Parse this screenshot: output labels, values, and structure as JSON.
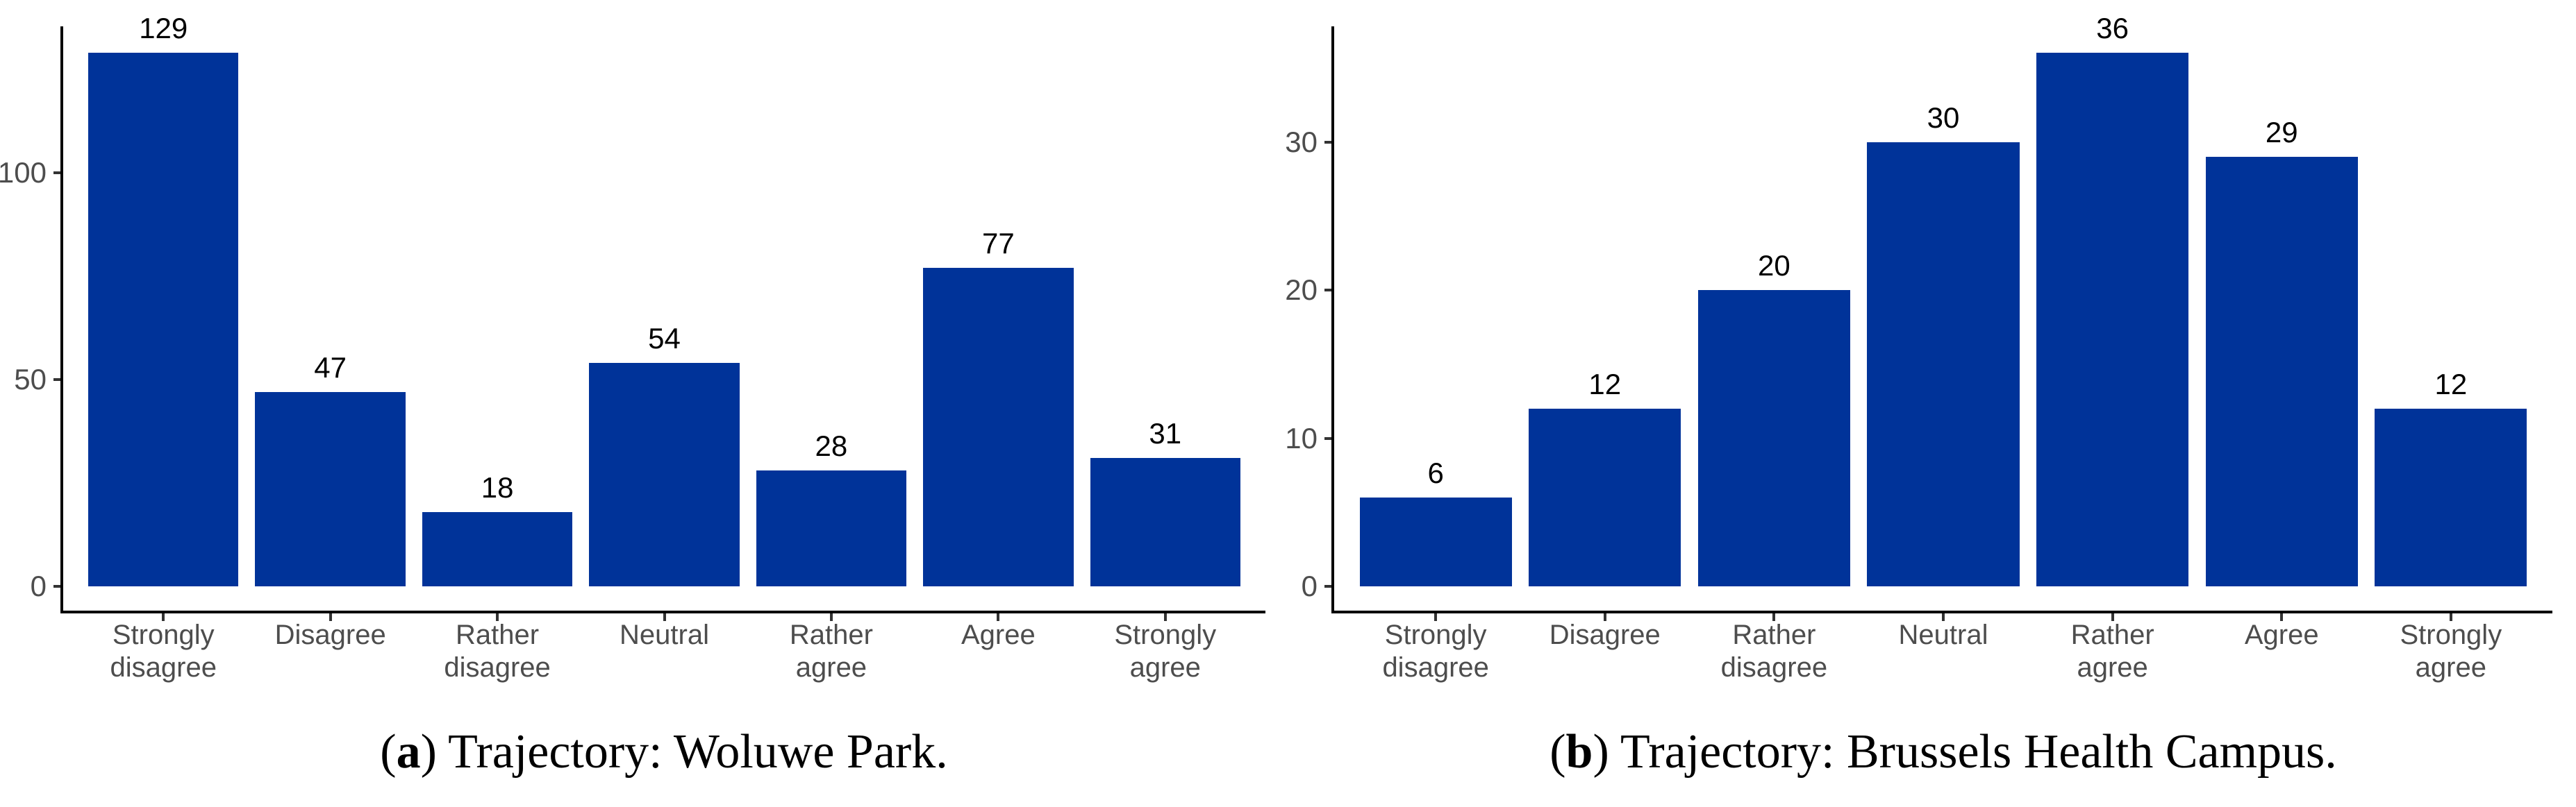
{
  "colors": {
    "background": "#ffffff",
    "bar_fill": "#003399",
    "axis_line": "#000000",
    "tick_mark": "#333333",
    "tick_label": "#4d4d4d",
    "value_label": "#000000",
    "caption_text": "#000000"
  },
  "chart_data": [
    {
      "id": "woluwe-park",
      "type": "bar",
      "title": "",
      "xlabel": "",
      "ylabel": "",
      "grid": false,
      "legend": false,
      "categories": [
        "Strongly\ndisagree",
        "Disagree",
        "Rather\ndisagree",
        "Neutral",
        "Rather\nagree",
        "Agree",
        "Strongly\nagree"
      ],
      "values": [
        129,
        47,
        18,
        54,
        28,
        77,
        31
      ],
      "bar_labels": [
        "129",
        "47",
        "18",
        "54",
        "28",
        "77",
        "31"
      ],
      "yticks": [
        0,
        50,
        100
      ],
      "ytick_labels": [
        "0",
        "50",
        "100"
      ],
      "ylim": [
        0,
        135.45
      ],
      "bar_color": "#003399",
      "caption": {
        "open": "(",
        "letter": "a",
        "close": ")",
        "text": " Trajectory: Woluwe Park."
      }
    },
    {
      "id": "brussels-health-campus",
      "type": "bar",
      "title": "",
      "xlabel": "",
      "ylabel": "",
      "grid": false,
      "legend": false,
      "categories": [
        "Strongly\ndisagree",
        "Disagree",
        "Rather\ndisagree",
        "Neutral",
        "Rather\nagree",
        "Agree",
        "Strongly\nagree"
      ],
      "values": [
        6,
        12,
        20,
        30,
        36,
        29,
        12
      ],
      "bar_labels": [
        "6",
        "12",
        "20",
        "30",
        "36",
        "29",
        "12"
      ],
      "yticks": [
        0,
        10,
        20,
        30
      ],
      "ytick_labels": [
        "0",
        "10",
        "20",
        "30"
      ],
      "ylim": [
        0,
        37.8
      ],
      "bar_color": "#003399",
      "caption": {
        "open": "(",
        "letter": "b",
        "close": ")",
        "text": " Trajectory: Brussels Health Campus."
      }
    }
  ]
}
